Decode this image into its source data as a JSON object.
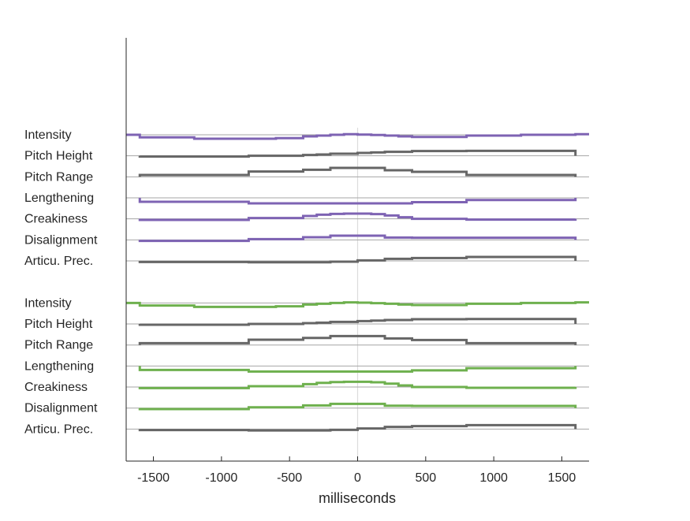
{
  "chart_data": {
    "type": "line",
    "title": "",
    "xlabel": "milliseconds",
    "ylabel": "",
    "xlim": [
      -1700,
      1700
    ],
    "xticks": [
      -1500,
      -1000,
      -500,
      0,
      500,
      1000,
      1500
    ],
    "grid": false,
    "value_units": "relative deviation from each row's baseline (arbitrary units, positive = up)",
    "colors": {
      "group1": "#7e63b3",
      "group2": "#6eb04e",
      "neutral": "#666666",
      "baseline": "#a6a6a6",
      "zero_line": "#dcdcdc"
    },
    "features": [
      {
        "label": "Intensity",
        "colored": true,
        "start": -1700,
        "end": 1700,
        "steps": [
          [
            -1700,
            0
          ],
          [
            -1600,
            -3.3
          ],
          [
            -1200,
            -5
          ],
          [
            -600,
            -4.3
          ],
          [
            -400,
            -2
          ],
          [
            -300,
            -1
          ],
          [
            -200,
            0
          ],
          [
            -100,
            0.7
          ],
          [
            0,
            0.3
          ],
          [
            100,
            -0.3
          ],
          [
            200,
            -1
          ],
          [
            300,
            -2
          ],
          [
            400,
            -2.7
          ],
          [
            800,
            -1
          ],
          [
            1200,
            0
          ],
          [
            1600,
            0.7
          ]
        ]
      },
      {
        "label": "Pitch Height",
        "colored": false,
        "start": -1600,
        "end": 1600,
        "steps": [
          [
            -1600,
            -1
          ],
          [
            -800,
            0
          ],
          [
            -400,
            1
          ],
          [
            -300,
            1.7
          ],
          [
            -200,
            2.7
          ],
          [
            0,
            3.7
          ],
          [
            100,
            4.3
          ],
          [
            200,
            5
          ],
          [
            400,
            6
          ],
          [
            800,
            6.3
          ]
        ]
      },
      {
        "label": "Pitch Range",
        "colored": false,
        "start": -1600,
        "end": 1600,
        "steps": [
          [
            -1600,
            2.3
          ],
          [
            -800,
            6.7
          ],
          [
            -400,
            9
          ],
          [
            -200,
            11.3
          ],
          [
            200,
            8.3
          ],
          [
            400,
            6.3
          ],
          [
            800,
            2.3
          ]
        ]
      },
      {
        "label": "Lengthening",
        "colored": true,
        "start": -1600,
        "end": 1600,
        "steps": [
          [
            -1600,
            -5
          ],
          [
            -800,
            -7
          ],
          [
            400,
            -5.5
          ],
          [
            800,
            -2.7
          ]
        ]
      },
      {
        "label": "Creakiness",
        "colored": true,
        "start": -1600,
        "end": 1600,
        "steps": [
          [
            -1600,
            -1.3
          ],
          [
            -800,
            1
          ],
          [
            -400,
            3.7
          ],
          [
            -300,
            5.3
          ],
          [
            -200,
            6.3
          ],
          [
            -100,
            6.7
          ],
          [
            100,
            6
          ],
          [
            200,
            4.3
          ],
          [
            300,
            2
          ],
          [
            400,
            0
          ],
          [
            800,
            -1
          ]
        ]
      },
      {
        "label": "Disalignment",
        "colored": true,
        "start": -1600,
        "end": 1600,
        "steps": [
          [
            -1600,
            -1.3
          ],
          [
            -800,
            1
          ],
          [
            -400,
            3.3
          ],
          [
            -200,
            5.3
          ],
          [
            200,
            3
          ],
          [
            400,
            2.7
          ]
        ]
      },
      {
        "label": "Articu. Prec.",
        "colored": false,
        "start": -1600,
        "end": 1600,
        "steps": [
          [
            -1600,
            -1.3
          ],
          [
            -800,
            -1.7
          ],
          [
            -200,
            -1
          ],
          [
            0,
            0.7
          ],
          [
            200,
            2.7
          ],
          [
            400,
            3.7
          ],
          [
            800,
            5
          ]
        ]
      }
    ],
    "groups": [
      {
        "name": "group1",
        "color_key": "group1"
      },
      {
        "name": "group2",
        "color_key": "group2"
      }
    ]
  }
}
